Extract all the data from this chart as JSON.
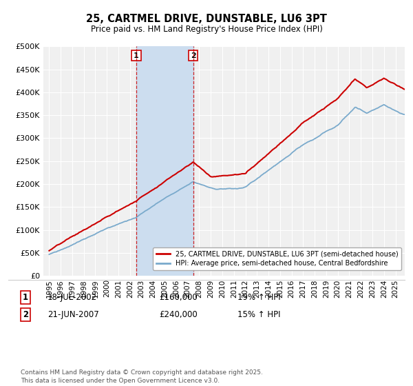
{
  "title": "25, CARTMEL DRIVE, DUNSTABLE, LU6 3PT",
  "subtitle": "Price paid vs. HM Land Registry's House Price Index (HPI)",
  "ylim": [
    0,
    500000
  ],
  "yticks": [
    0,
    50000,
    100000,
    150000,
    200000,
    250000,
    300000,
    350000,
    400000,
    450000,
    500000
  ],
  "ytick_labels": [
    "£0",
    "£50K",
    "£100K",
    "£150K",
    "£200K",
    "£250K",
    "£300K",
    "£350K",
    "£400K",
    "£450K",
    "£500K"
  ],
  "xtick_years": [
    1995,
    1996,
    1997,
    1998,
    1999,
    2000,
    2001,
    2002,
    2003,
    2004,
    2005,
    2006,
    2007,
    2008,
    2009,
    2010,
    2011,
    2012,
    2013,
    2014,
    2015,
    2016,
    2017,
    2018,
    2019,
    2020,
    2021,
    2022,
    2023,
    2024,
    2025
  ],
  "xlim": [
    1994.5,
    2025.8
  ],
  "transaction1_date": "18-JUL-2002",
  "transaction1_price": 160000,
  "transaction1_pct": "19%",
  "transaction1_x": 2002.54,
  "transaction2_date": "21-JUN-2007",
  "transaction2_price": 240000,
  "transaction2_pct": "15%",
  "transaction2_x": 2007.47,
  "shade_color": "#ccddef",
  "red_line_color": "#cc0000",
  "blue_line_color": "#7aaacc",
  "background_color": "#f0f0f0",
  "grid_color": "#ffffff",
  "legend_label_red": "25, CARTMEL DRIVE, DUNSTABLE, LU6 3PT (semi-detached house)",
  "legend_label_blue": "HPI: Average price, semi-detached house, Central Bedfordshire",
  "footer": "Contains HM Land Registry data © Crown copyright and database right 2025.\nThis data is licensed under the Open Government Licence v3.0."
}
